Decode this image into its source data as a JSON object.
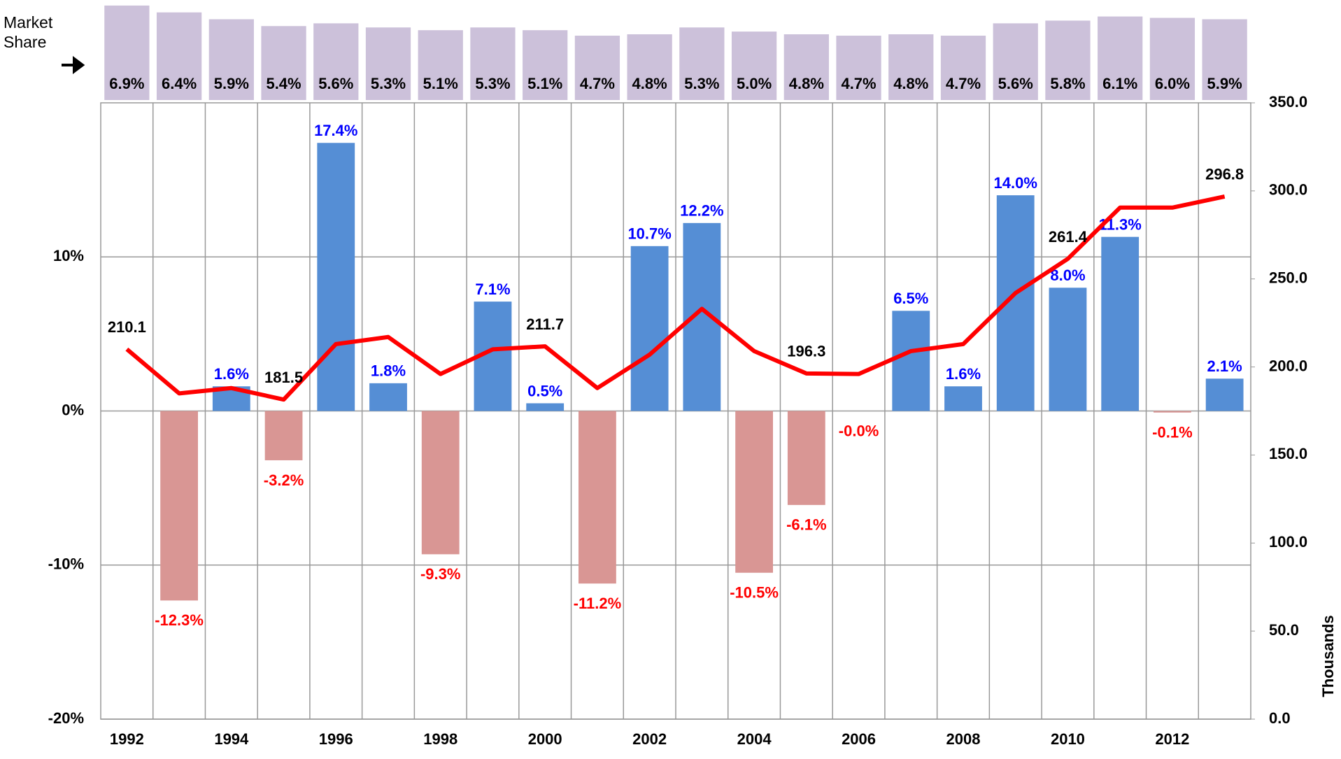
{
  "chart_data": [
    {
      "type": "bar",
      "annotation": "Market Share",
      "color": "#ccc1da",
      "values": [
        6.9,
        6.4,
        5.9,
        5.4,
        5.6,
        5.3,
        5.1,
        5.3,
        5.1,
        4.7,
        4.8,
        5.3,
        5.0,
        4.8,
        4.7,
        4.8,
        4.7,
        5.6,
        5.8,
        6.1,
        6.0,
        5.9
      ],
      "value_labels": [
        "6.9%",
        "6.4%",
        "5.9%",
        "5.4%",
        "5.6%",
        "5.3%",
        "5.1%",
        "5.3%",
        "5.1%",
        "4.7%",
        "4.8%",
        "5.3%",
        "5.0%",
        "4.8%",
        "4.7%",
        "4.8%",
        "4.7%",
        "5.6%",
        "5.8%",
        "6.1%",
        "6.0%",
        "5.9%"
      ],
      "ylim": [
        0,
        7.1
      ]
    },
    {
      "type": "bar",
      "categories": [
        "1992",
        null,
        "1994",
        null,
        "1996",
        null,
        "1998",
        null,
        "2000",
        null,
        "2002",
        null,
        "2004",
        null,
        "2006",
        null,
        "2008",
        null,
        "2010",
        null,
        "2012",
        null
      ],
      "series": [
        {
          "type": "bar",
          "axis": "y",
          "color": "#558ed5",
          "negative_color": "#d99694",
          "label_color": "#0000ff",
          "negative_label_color": "#ff0000",
          "values": [
            null,
            -12.3,
            1.6,
            -3.2,
            17.4,
            1.8,
            -9.3,
            7.1,
            0.5,
            -11.2,
            10.7,
            12.2,
            -10.5,
            -6.1,
            -0.0,
            6.5,
            1.6,
            14.0,
            8.0,
            11.3,
            -0.1,
            2.1
          ],
          "value_labels": [
            null,
            "-12.3%",
            "1.6%",
            "-3.2%",
            "17.4%",
            "1.8%",
            "-9.3%",
            "7.1%",
            "0.5%",
            "-11.2%",
            "10.7%",
            "12.2%",
            "-10.5%",
            "-6.1%",
            "-0.0%",
            "6.5%",
            "1.6%",
            "14.0%",
            "8.0%",
            "11.3%",
            "-0.1%",
            "2.1%"
          ]
        },
        {
          "type": "line",
          "axis": "y2",
          "color": "#ff0000",
          "values": [
            210.1,
            185,
            188,
            181.5,
            213,
            217,
            196,
            210,
            211.7,
            188,
            207,
            233,
            209,
            196.3,
            196,
            209,
            213,
            242,
            261.4,
            290.5,
            290.5,
            296.8
          ],
          "value_labels": [
            "210.1",
            null,
            null,
            "181.5",
            null,
            null,
            null,
            null,
            "211.7",
            null,
            null,
            null,
            null,
            "196.3",
            null,
            null,
            null,
            null,
            "261.4",
            null,
            null,
            "296.8"
          ]
        }
      ],
      "ylim": [
        -20,
        20
      ],
      "yticks": [
        {
          "value": -20,
          "label": "-20%"
        },
        {
          "value": -10,
          "label": "-10%"
        },
        {
          "value": 0,
          "label": "0%"
        },
        {
          "value": 10,
          "label": "10%"
        }
      ],
      "y2lim": [
        0,
        350
      ],
      "y2ticks": [
        {
          "value": 0,
          "label": "0.0"
        },
        {
          "value": 50,
          "label": "50.0"
        },
        {
          "value": 100,
          "label": "100.0"
        },
        {
          "value": 150,
          "label": "150.0"
        },
        {
          "value": 200,
          "label": "200.0"
        },
        {
          "value": 250,
          "label": "250.0"
        },
        {
          "value": 300,
          "label": "300.0"
        },
        {
          "value": 350,
          "label": "350.0"
        }
      ],
      "y2label": "Thousands",
      "grid": true
    }
  ]
}
